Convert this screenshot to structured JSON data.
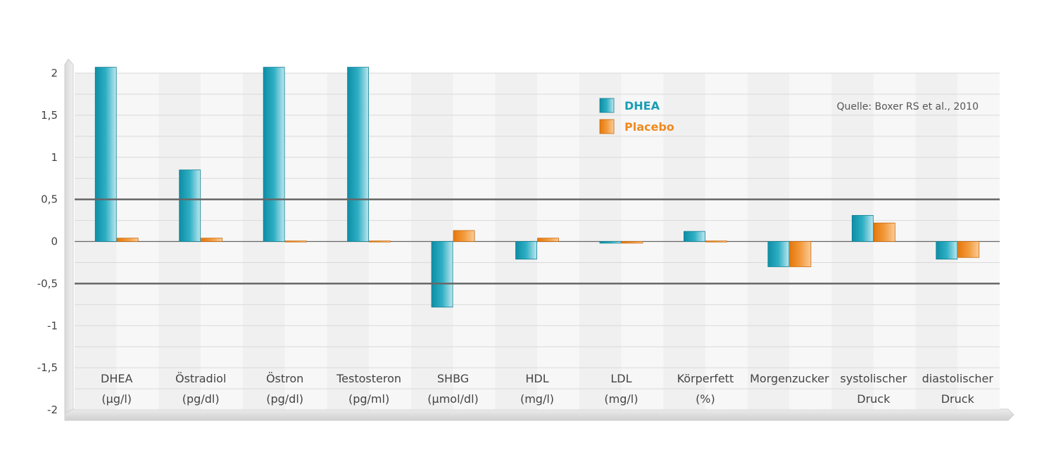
{
  "chart_data": {
    "type": "bar",
    "source": "Quelle: Boxer RS et al., 2010",
    "ylim": [
      -2,
      2.08
    ],
    "yticks": [
      "2",
      "1,5",
      "1",
      "0,5",
      "0",
      "-0,5",
      "-1",
      "-1,5",
      "-2"
    ],
    "ytick_values": [
      2,
      1.5,
      1,
      0.5,
      0,
      -0.5,
      -1,
      -1.5,
      -2
    ],
    "reference_lines": [
      0.5,
      -0.5
    ],
    "legend_position": "top-center",
    "categories": [
      {
        "line1": "DHEA",
        "line2": "(µg/l)"
      },
      {
        "line1": "Östradiol",
        "line2": "(pg/dl)"
      },
      {
        "line1": "Östron",
        "line2": "(pg/dl)"
      },
      {
        "line1": "Testosteron",
        "line2": "(pg/ml)"
      },
      {
        "line1": "SHBG",
        "line2": "(µmol/dl)"
      },
      {
        "line1": "HDL",
        "line2": "(mg/l)"
      },
      {
        "line1": "LDL",
        "line2": "(mg/l)"
      },
      {
        "line1": "Körperfett",
        "line2": "(%)"
      },
      {
        "line1": "Morgenzucker",
        "line2": ""
      },
      {
        "line1": "systolischer",
        "line2": "Druck"
      },
      {
        "line1": "diastolischer",
        "line2": "Druck"
      }
    ],
    "series": [
      {
        "name": "DHEA",
        "color": "#1a9db4",
        "values": [
          2.07,
          0.85,
          2.07,
          2.07,
          -0.78,
          -0.21,
          -0.02,
          0.12,
          -0.3,
          0.31,
          -0.21
        ]
      },
      {
        "name": "Placebo",
        "color": "#ef8a1f",
        "values": [
          0.04,
          0.04,
          0.0,
          0.01,
          0.13,
          0.04,
          -0.02,
          0.0,
          -0.3,
          0.22,
          -0.19
        ]
      }
    ]
  }
}
